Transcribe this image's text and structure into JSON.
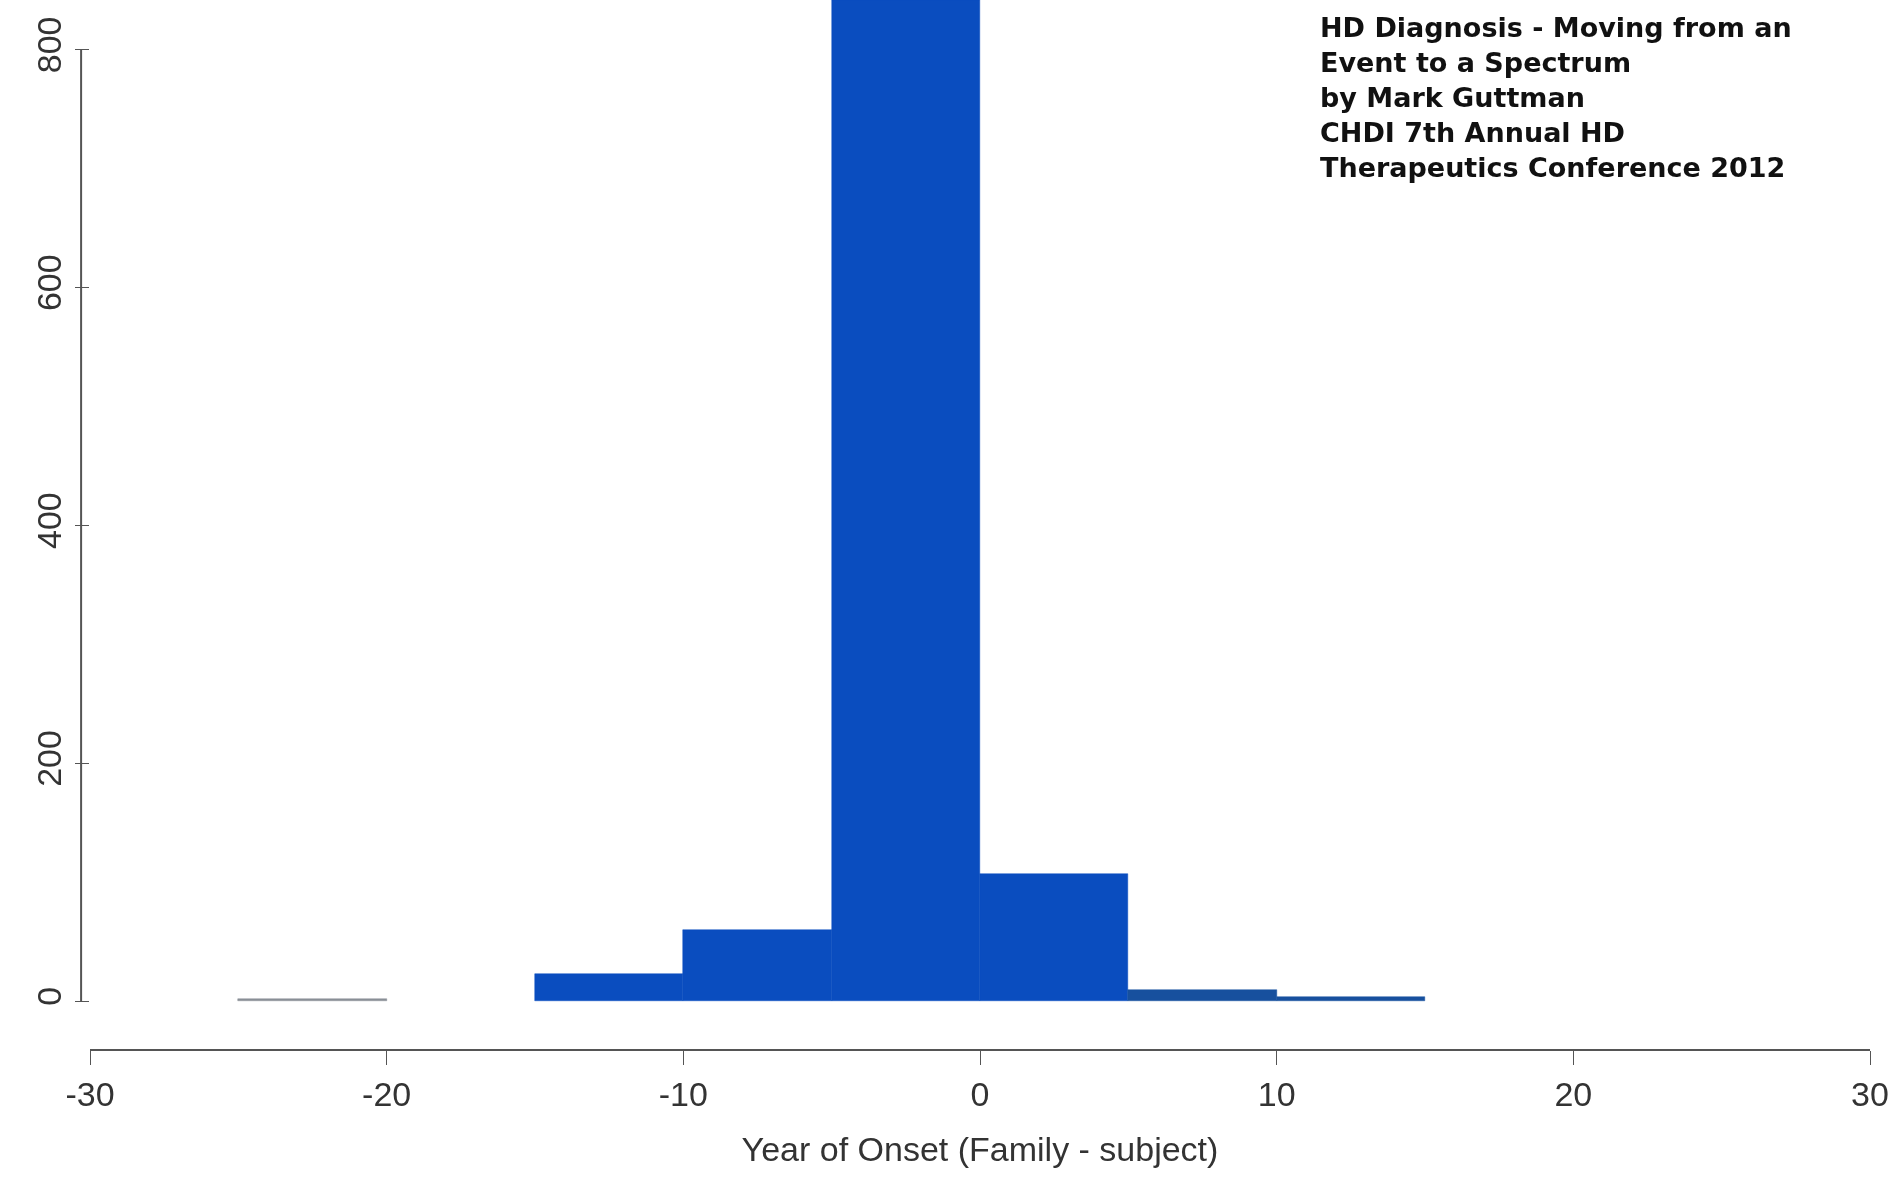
{
  "chart_data": {
    "type": "histogram",
    "xlabel": "Year of Onset (Family - subject)",
    "bins": [
      -25,
      -20,
      -15,
      -10,
      -5,
      0,
      5,
      10,
      15
    ],
    "values": [
      2,
      0,
      23,
      60,
      842,
      107,
      10,
      4
    ],
    "colors": [
      "#8a8f96",
      null,
      "#0a4dbf",
      "#0a4dbf",
      "#0a4dbf",
      "#0a4dbf",
      "#17509e",
      "#17509e"
    ],
    "xlim": [
      -30,
      30
    ],
    "xticks": [
      -30,
      -20,
      -10,
      0,
      10,
      20,
      30
    ],
    "ylim": [
      -40,
      842
    ],
    "yticks": [
      0,
      200,
      400,
      600,
      800
    ],
    "annotations": [
      "HD Diagnosis - Moving from an\nEvent to a Spectrum\nby Mark Guttman\nCHDI 7th Annual HD\nTherapeutics Conference 2012"
    ]
  }
}
